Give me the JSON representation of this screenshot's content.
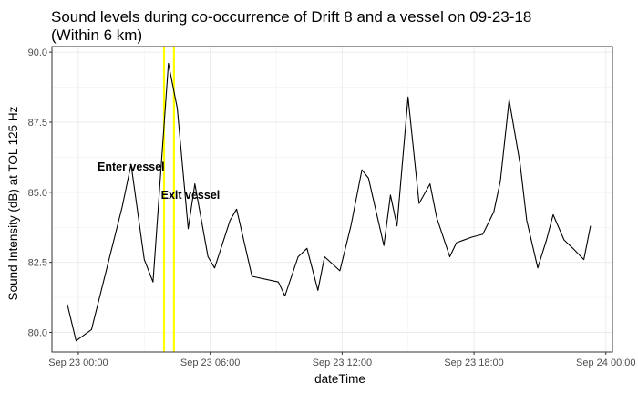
{
  "chart_data": {
    "type": "line",
    "title_line1": "Sound levels during co-occurrence of Drift 8 and a vessel on 09-23-18",
    "title_line2": "(Within 6 km)",
    "xlabel": "dateTime",
    "ylabel": "Sound Intensity (dB) at TOL 125 Hz",
    "xlim_hours": [
      -1.2,
      24.3
    ],
    "ylim": [
      79.3,
      90.2
    ],
    "y_ticks": [
      80.0,
      82.5,
      85.0,
      87.5,
      90.0
    ],
    "y_tick_labels": [
      "80.0",
      "82.5",
      "85.0",
      "87.5",
      "90.0"
    ],
    "x_ticks_hours": [
      0,
      6,
      12,
      18,
      24
    ],
    "x_tick_labels": [
      "Sep 23 00:00",
      "Sep 23 06:00",
      "Sep 23 12:00",
      "Sep 23 18:00",
      "Sep 24 00:00"
    ],
    "grid": true,
    "line_color": "#000000",
    "vline_color": "#ffff00",
    "series": [
      {
        "x_hours": [
          -0.5,
          -0.1,
          0.6,
          1.3,
          2.0,
          2.4,
          3.0,
          3.4,
          4.1,
          4.5,
          5.0,
          5.3,
          5.9,
          6.2,
          6.9,
          7.2,
          7.9,
          9.1,
          9.4,
          10.0,
          10.4,
          10.9,
          11.2,
          11.9,
          12.4,
          12.9,
          13.2,
          13.9,
          14.2,
          14.5,
          15.0,
          15.5,
          16.0,
          16.3,
          16.9,
          17.2,
          17.9,
          18.4,
          18.9,
          19.2,
          19.6,
          20.1,
          20.4,
          20.9,
          21.3,
          21.6,
          22.1,
          22.5,
          23.0,
          23.3
        ],
        "y": [
          81.0,
          79.7,
          80.1,
          82.3,
          84.5,
          86.0,
          82.6,
          81.8,
          89.6,
          88.0,
          83.7,
          85.3,
          82.7,
          82.3,
          84.0,
          84.4,
          82.0,
          81.8,
          81.3,
          82.7,
          83.0,
          81.5,
          82.7,
          82.2,
          83.8,
          85.8,
          85.5,
          83.1,
          84.9,
          83.8,
          88.4,
          84.6,
          85.3,
          84.1,
          82.7,
          83.2,
          83.4,
          83.5,
          84.3,
          85.4,
          88.3,
          86.0,
          84.0,
          82.3,
          83.3,
          84.2,
          83.3,
          83.0,
          82.6,
          83.8
        ]
      }
    ],
    "vlines_hours": [
      3.9,
      4.35
    ],
    "annotations": [
      {
        "text": "Enter vessel",
        "x_hours": 2.4,
        "y": 85.9
      },
      {
        "text": "Exit vessel",
        "x_hours": 5.1,
        "y": 84.9
      }
    ]
  }
}
